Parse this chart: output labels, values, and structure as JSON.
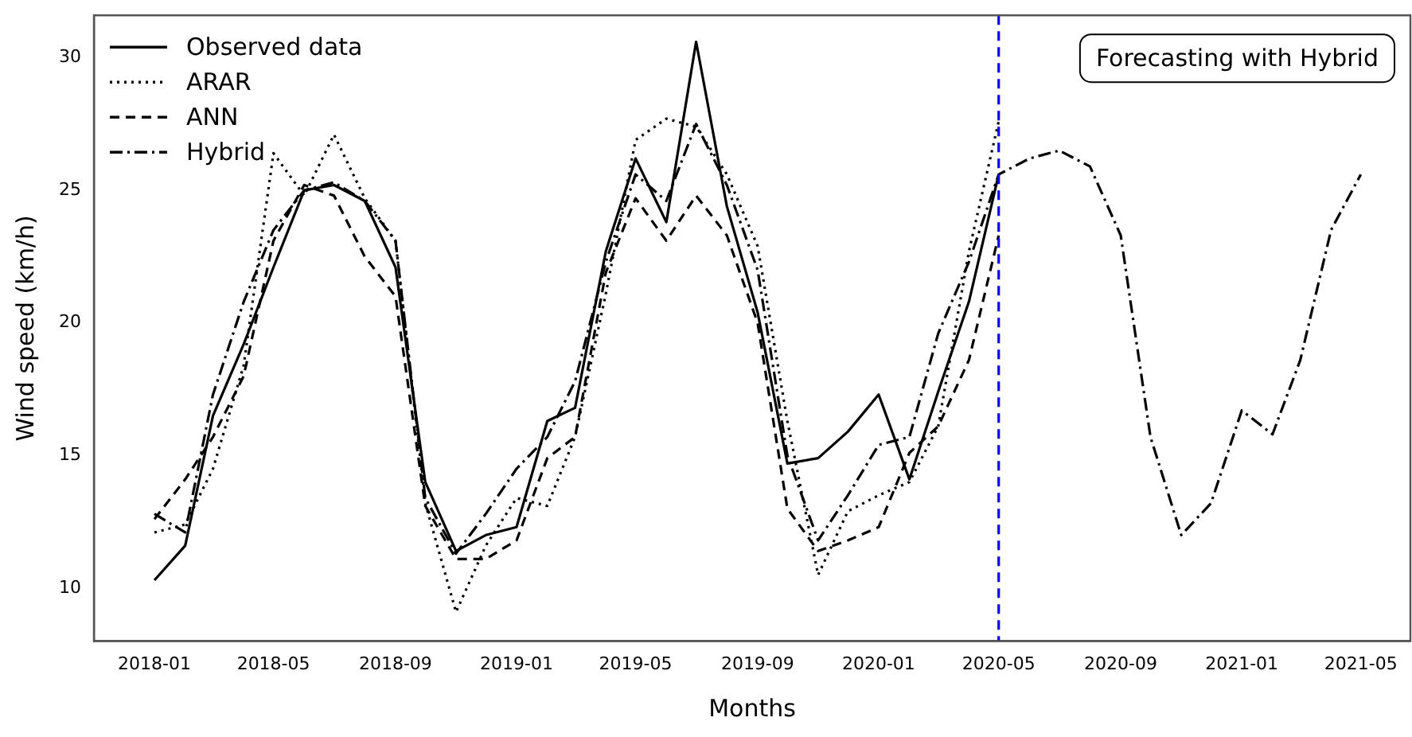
{
  "chart_data": {
    "type": "line",
    "xlabel": "Months",
    "ylabel": "Wind speed (km/h)",
    "x": [
      "2018-01",
      "2018-02",
      "2018-03",
      "2018-04",
      "2018-05",
      "2018-06",
      "2018-07",
      "2018-08",
      "2018-09",
      "2018-10",
      "2018-11",
      "2018-12",
      "2019-01",
      "2019-02",
      "2019-03",
      "2019-04",
      "2019-05",
      "2019-06",
      "2019-07",
      "2019-08",
      "2019-09",
      "2019-10",
      "2019-11",
      "2019-12",
      "2020-01",
      "2020-02",
      "2020-03",
      "2020-04",
      "2020-05"
    ],
    "series": [
      {
        "name": "Observed data",
        "color": "#000000",
        "line_style": "solid",
        "values": [
          10.3,
          11.6,
          16.5,
          19.2,
          22.1,
          25.0,
          25.2,
          24.6,
          22.1,
          14.0,
          11.4,
          12.0,
          12.3,
          16.3,
          16.8,
          22.7,
          26.2,
          23.8,
          30.6,
          24.4,
          20.4,
          14.7,
          14.9,
          15.9,
          17.3,
          14.1,
          17.4,
          20.8,
          25.6
        ]
      },
      {
        "name": "ARAR",
        "color": "#000000",
        "line_style": "dotted",
        "values": [
          12.1,
          12.4,
          14.5,
          18.4,
          26.4,
          24.8,
          27.1,
          24.7,
          23.1,
          13.2,
          9.1,
          11.6,
          13.4,
          13.1,
          15.7,
          21.1,
          26.9,
          27.7,
          27.4,
          25.6,
          22.9,
          16.3,
          10.5,
          12.9,
          13.5,
          14.0,
          16.1,
          22.7,
          27.6
        ]
      },
      {
        "name": "ANN",
        "color": "#000000",
        "line_style": "dashed",
        "values": [
          12.6,
          14.1,
          15.7,
          18.0,
          23.1,
          25.2,
          24.8,
          22.5,
          21.0,
          13.1,
          11.1,
          11.1,
          11.8,
          14.9,
          15.7,
          21.9,
          24.7,
          23.1,
          24.8,
          23.3,
          20.0,
          13.0,
          11.4,
          11.8,
          12.3,
          15.1,
          16.1,
          18.6,
          23.3
        ]
      },
      {
        "name": "Hybrid",
        "color": "#000000",
        "line_style": "dashdot",
        "x": [
          "2018-01",
          "2018-02",
          "2018-03",
          "2018-04",
          "2018-05",
          "2018-06",
          "2018-07",
          "2018-08",
          "2018-09",
          "2018-10",
          "2018-11",
          "2018-12",
          "2019-01",
          "2019-02",
          "2019-03",
          "2019-04",
          "2019-05",
          "2019-06",
          "2019-07",
          "2019-08",
          "2019-09",
          "2019-10",
          "2019-11",
          "2019-12",
          "2020-01",
          "2020-02",
          "2020-03",
          "2020-04",
          "2020-05",
          "2020-06",
          "2020-07",
          "2020-08",
          "2020-09",
          "2020-10",
          "2020-11",
          "2020-12",
          "2021-01",
          "2021-02",
          "2021-03",
          "2021-04",
          "2021-05"
        ],
        "values": [
          12.8,
          12.1,
          17.3,
          20.8,
          23.5,
          25.0,
          25.3,
          24.6,
          23.1,
          13.4,
          11.3,
          12.8,
          14.5,
          15.7,
          17.8,
          22.3,
          25.6,
          24.6,
          27.5,
          25.2,
          22.0,
          15.0,
          11.8,
          13.5,
          15.4,
          15.7,
          19.6,
          22.3,
          25.6,
          26.2,
          26.5,
          25.9,
          23.3,
          15.7,
          12.0,
          13.2,
          16.7,
          15.8,
          18.6,
          23.5,
          25.6
        ]
      }
    ],
    "xlim": [
      "2017-11-01",
      "2021-06-20"
    ],
    "xticks": [
      "2018-01",
      "2018-05",
      "2018-09",
      "2019-01",
      "2019-05",
      "2019-09",
      "2020-01",
      "2020-05",
      "2020-09",
      "2021-01",
      "2021-05"
    ],
    "ylim": [
      8.0,
      31.6
    ],
    "yticks": [
      10,
      15,
      20,
      25,
      30
    ],
    "ref_lines": [
      {
        "axis": "x",
        "value": "2020-05",
        "color": "#0000ff",
        "line_style": "dashed"
      }
    ],
    "annotations": [
      "Forecasting with Hybrid"
    ],
    "legend": "top left",
    "grid": false,
    "marker": "none"
  }
}
